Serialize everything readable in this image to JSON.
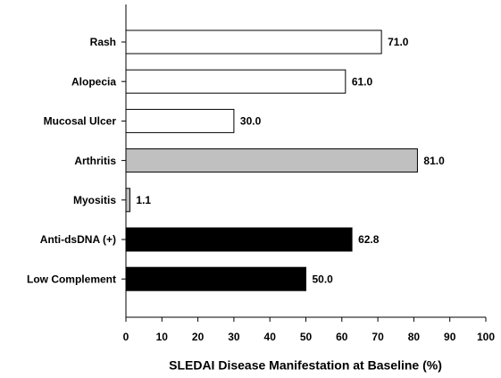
{
  "chart_data": {
    "type": "bar",
    "orientation": "horizontal",
    "xlabel": "SLEDAI Disease Manifestation at Baseline (%)",
    "categories": [
      "Rash",
      "Alopecia",
      "Mucosal Ulcer",
      "Arthritis",
      "Myositis",
      "Anti-dsDNA (+)",
      "Low Complement"
    ],
    "values": [
      71,
      61,
      30,
      81,
      1.1,
      62.8,
      50
    ],
    "value_labels": [
      "71.0",
      "61.0",
      "30.0",
      "81.0",
      "1.1",
      "62.8",
      "50.0"
    ],
    "colors": [
      "#ffffff",
      "#ffffff",
      "#ffffff",
      "#c0c0c0",
      "#c0c0c0",
      "#000000",
      "#000000"
    ],
    "xlim": [
      0,
      100
    ],
    "xticks": [
      0,
      10,
      20,
      30,
      40,
      50,
      60,
      70,
      80,
      90,
      100
    ],
    "grid": false
  }
}
